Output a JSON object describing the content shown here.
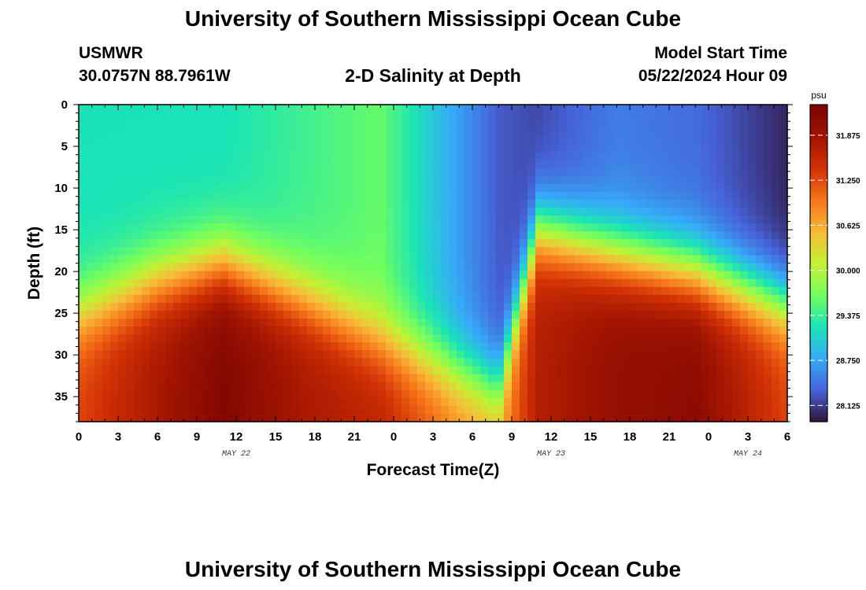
{
  "header": {
    "title": "University of Southern Mississippi Ocean Cube",
    "station_id": "USMWR",
    "station_coords": "30.0757N  88.7961W",
    "subtitle": "2-D Salinity at Depth",
    "model_start_label": "Model Start Time",
    "model_start_value": "05/22/2024 Hour 09"
  },
  "footer": {
    "title": "University of Southern Mississippi Ocean Cube"
  },
  "chart_data": {
    "type": "heatmap",
    "xlabel": "Forecast Time(Z)",
    "ylabel": "Depth (ft)",
    "x_tick_labels": [
      "0",
      "3",
      "6",
      "9",
      "12",
      "15",
      "18",
      "21",
      "0",
      "3",
      "6",
      "9",
      "12",
      "15",
      "18",
      "21",
      "0",
      "3",
      "6"
    ],
    "x_range_hours": [
      0,
      54
    ],
    "date_labels": [
      {
        "text": "MAY 22",
        "at_hour": 12
      },
      {
        "text": "MAY 23",
        "at_hour": 36
      },
      {
        "text": "MAY 24",
        "at_hour": 51
      }
    ],
    "y_ticks": [
      0,
      5,
      10,
      15,
      20,
      25,
      30,
      35
    ],
    "ylim": [
      0,
      38
    ],
    "y_inverted": true,
    "colorbar": {
      "unit": "psu",
      "ticks": [
        "31.875",
        "31.250",
        "30.625",
        "30.000",
        "29.375",
        "28.750",
        "28.125"
      ],
      "range": [
        27.9,
        32.3
      ],
      "colormap": "turbo"
    },
    "salinity_profiles": [
      {
        "hour": 0,
        "surface": 29.2,
        "mixed_depth": 25,
        "bottom": 31.3,
        "note": "uniform upper layer"
      },
      {
        "hour": 6,
        "surface": 29.2,
        "mixed_depth": 21,
        "bottom": 31.8
      },
      {
        "hour": 11,
        "surface": 29.2,
        "mixed_depth": 19,
        "bottom": 32.2
      },
      {
        "hour": 17,
        "surface": 29.4,
        "mixed_depth": 23,
        "bottom": 31.8
      },
      {
        "hour": 23,
        "surface": 29.6,
        "mixed_depth": 28,
        "bottom": 31.6
      },
      {
        "hour": 29,
        "surface": 28.7,
        "mixed_depth": 32,
        "bottom": 30.9
      },
      {
        "hour": 32,
        "surface": 28.3,
        "mixed_depth": 34,
        "bottom": 30.7
      },
      {
        "hour": 35,
        "surface": 28.2,
        "mixed_depth": 15,
        "bottom": 31.7
      },
      {
        "hour": 41,
        "surface": 28.5,
        "mixed_depth": 18,
        "bottom": 32.0
      },
      {
        "hour": 47,
        "surface": 28.4,
        "mixed_depth": 20,
        "bottom": 32.1
      },
      {
        "hour": 54,
        "surface": 28.0,
        "mixed_depth": 24,
        "bottom": 31.3
      }
    ]
  }
}
